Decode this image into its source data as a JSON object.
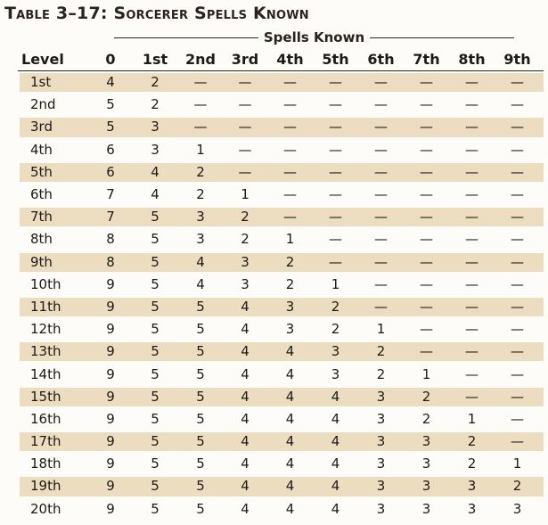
{
  "title": "Table 3–17: Sorcerer Spells Known",
  "group_label": "Spells Known",
  "columns": [
    "Level",
    "0",
    "1st",
    "2nd",
    "3rd",
    "4th",
    "5th",
    "6th",
    "7th",
    "8th",
    "9th"
  ],
  "rows": [
    [
      "1st",
      "4",
      "2",
      "—",
      "—",
      "—",
      "—",
      "—",
      "—",
      "—",
      "—"
    ],
    [
      "2nd",
      "5",
      "2",
      "—",
      "—",
      "—",
      "—",
      "—",
      "—",
      "—",
      "—"
    ],
    [
      "3rd",
      "5",
      "3",
      "—",
      "—",
      "—",
      "—",
      "—",
      "—",
      "—",
      "—"
    ],
    [
      "4th",
      "6",
      "3",
      "1",
      "—",
      "—",
      "—",
      "—",
      "—",
      "—",
      "—"
    ],
    [
      "5th",
      "6",
      "4",
      "2",
      "—",
      "—",
      "—",
      "—",
      "—",
      "—",
      "—"
    ],
    [
      "6th",
      "7",
      "4",
      "2",
      "1",
      "—",
      "—",
      "—",
      "—",
      "—",
      "—"
    ],
    [
      "7th",
      "7",
      "5",
      "3",
      "2",
      "—",
      "—",
      "—",
      "—",
      "—",
      "—"
    ],
    [
      "8th",
      "8",
      "5",
      "3",
      "2",
      "1",
      "—",
      "—",
      "—",
      "—",
      "—"
    ],
    [
      "9th",
      "8",
      "5",
      "4",
      "3",
      "2",
      "—",
      "—",
      "—",
      "—",
      "—"
    ],
    [
      "10th",
      "9",
      "5",
      "4",
      "3",
      "2",
      "1",
      "—",
      "—",
      "—",
      "—"
    ],
    [
      "11th",
      "9",
      "5",
      "5",
      "4",
      "3",
      "2",
      "—",
      "—",
      "—",
      "—"
    ],
    [
      "12th",
      "9",
      "5",
      "5",
      "4",
      "3",
      "2",
      "1",
      "—",
      "—",
      "—"
    ],
    [
      "13th",
      "9",
      "5",
      "5",
      "4",
      "4",
      "3",
      "2",
      "—",
      "—",
      "—"
    ],
    [
      "14th",
      "9",
      "5",
      "5",
      "4",
      "4",
      "3",
      "2",
      "1",
      "—",
      "—"
    ],
    [
      "15th",
      "9",
      "5",
      "5",
      "4",
      "4",
      "4",
      "3",
      "2",
      "—",
      "—"
    ],
    [
      "16th",
      "9",
      "5",
      "5",
      "4",
      "4",
      "4",
      "3",
      "2",
      "1",
      "—"
    ],
    [
      "17th",
      "9",
      "5",
      "5",
      "4",
      "4",
      "4",
      "3",
      "3",
      "2",
      "—"
    ],
    [
      "18th",
      "9",
      "5",
      "5",
      "4",
      "4",
      "4",
      "3",
      "3",
      "2",
      "1"
    ],
    [
      "19th",
      "9",
      "5",
      "5",
      "4",
      "4",
      "4",
      "3",
      "3",
      "3",
      "2"
    ],
    [
      "20th",
      "9",
      "5",
      "5",
      "4",
      "4",
      "4",
      "3",
      "3",
      "3",
      "3"
    ]
  ],
  "colors": {
    "shade": "#ecdcc0",
    "text": "#1e1a16",
    "background": "#fdfcf8"
  }
}
